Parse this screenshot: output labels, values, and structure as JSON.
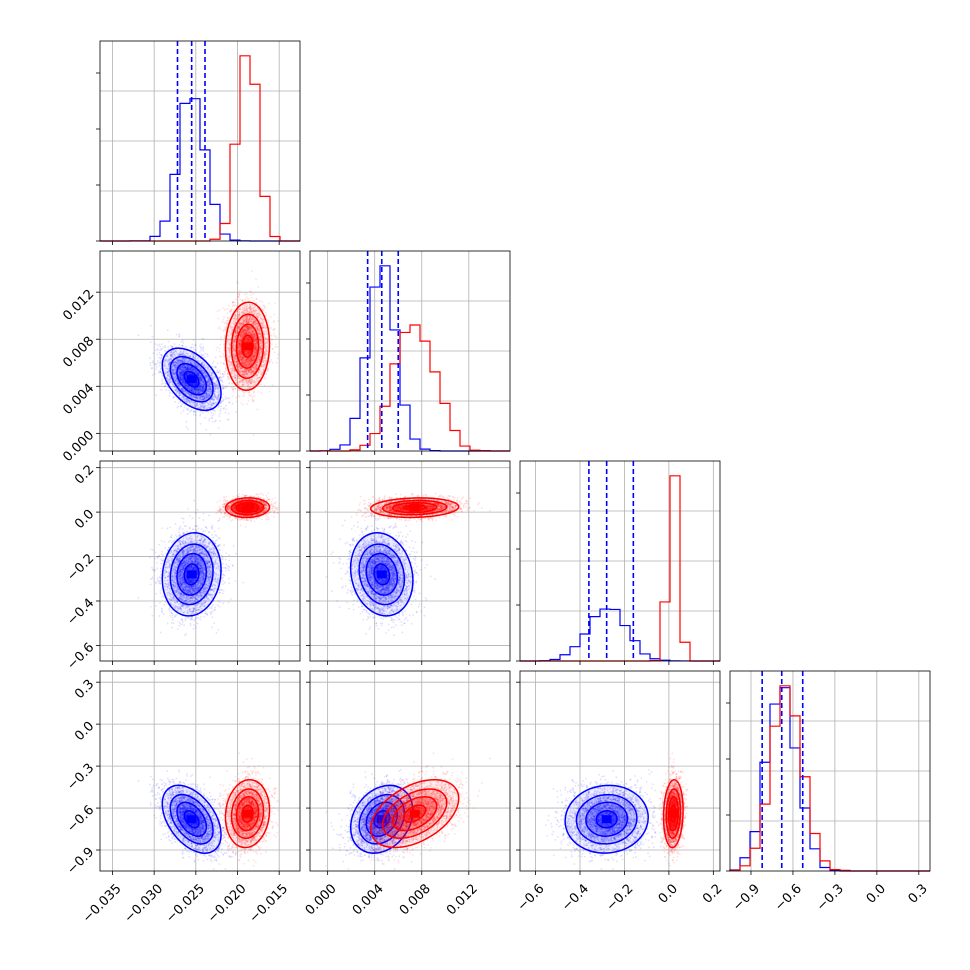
{
  "chart_data": {
    "type": "corner",
    "grid": true,
    "series": [
      {
        "color": "#0000ff",
        "means": [
          -0.0255,
          0.0046,
          -0.28,
          -0.68
        ],
        "sds": [
          0.0016,
          0.0012,
          0.085,
          0.11
        ],
        "corr": [
          [
            1,
            -0.45,
            0.1,
            -0.45
          ],
          [
            -0.45,
            1,
            -0.15,
            0.25
          ],
          [
            0.1,
            -0.15,
            1,
            0.05
          ],
          [
            -0.45,
            0.25,
            0.05,
            1
          ]
        ],
        "quantiles": [
          [
            -0.0272,
            -0.0255,
            -0.0239
          ],
          [
            0.0034,
            0.0046,
            0.006
          ],
          [
            -0.36,
            -0.28,
            -0.16
          ],
          [
            -0.82,
            -0.68,
            -0.53
          ]
        ]
      },
      {
        "color": "#ff0000",
        "means": [
          -0.0188,
          0.0074,
          0.02,
          -0.64
        ],
        "sds": [
          0.0012,
          0.0017,
          0.02,
          0.11
        ],
        "corr": [
          [
            1,
            0.05,
            0.05,
            0.1
          ],
          [
            0.05,
            1,
            0.1,
            0.45
          ],
          [
            0.05,
            0.1,
            1,
            0.1
          ],
          [
            0.1,
            0.45,
            0.1,
            1
          ]
        ],
        "quantiles": null
      }
    ],
    "axes": [
      {
        "range": [
          -0.0365,
          -0.0125
        ],
        "ticks": [
          -0.035,
          -0.03,
          -0.025,
          -0.02,
          -0.015
        ],
        "tick_labels": [
          "−0.035",
          "−0.030",
          "−0.025",
          "−0.020",
          "−0.015"
        ]
      },
      {
        "range": [
          -0.0015,
          0.0155
        ],
        "ticks": [
          0.0,
          0.004,
          0.008,
          0.012
        ],
        "tick_labels": [
          "0.000",
          "0.004",
          "0.008",
          "0.012"
        ]
      },
      {
        "range": [
          -0.67,
          0.23
        ],
        "ticks": [
          -0.6,
          -0.4,
          -0.2,
          0.0,
          0.2
        ],
        "tick_labels": [
          "−0.6",
          "−0.4",
          "−0.2",
          "0.0",
          "0.2"
        ]
      },
      {
        "range": [
          -1.05,
          0.38
        ],
        "ticks": [
          -0.9,
          -0.6,
          -0.3,
          0.0,
          0.3
        ],
        "tick_labels": [
          "−0.9",
          "−0.6",
          "−0.3",
          "0.0",
          "0.3"
        ]
      }
    ]
  }
}
